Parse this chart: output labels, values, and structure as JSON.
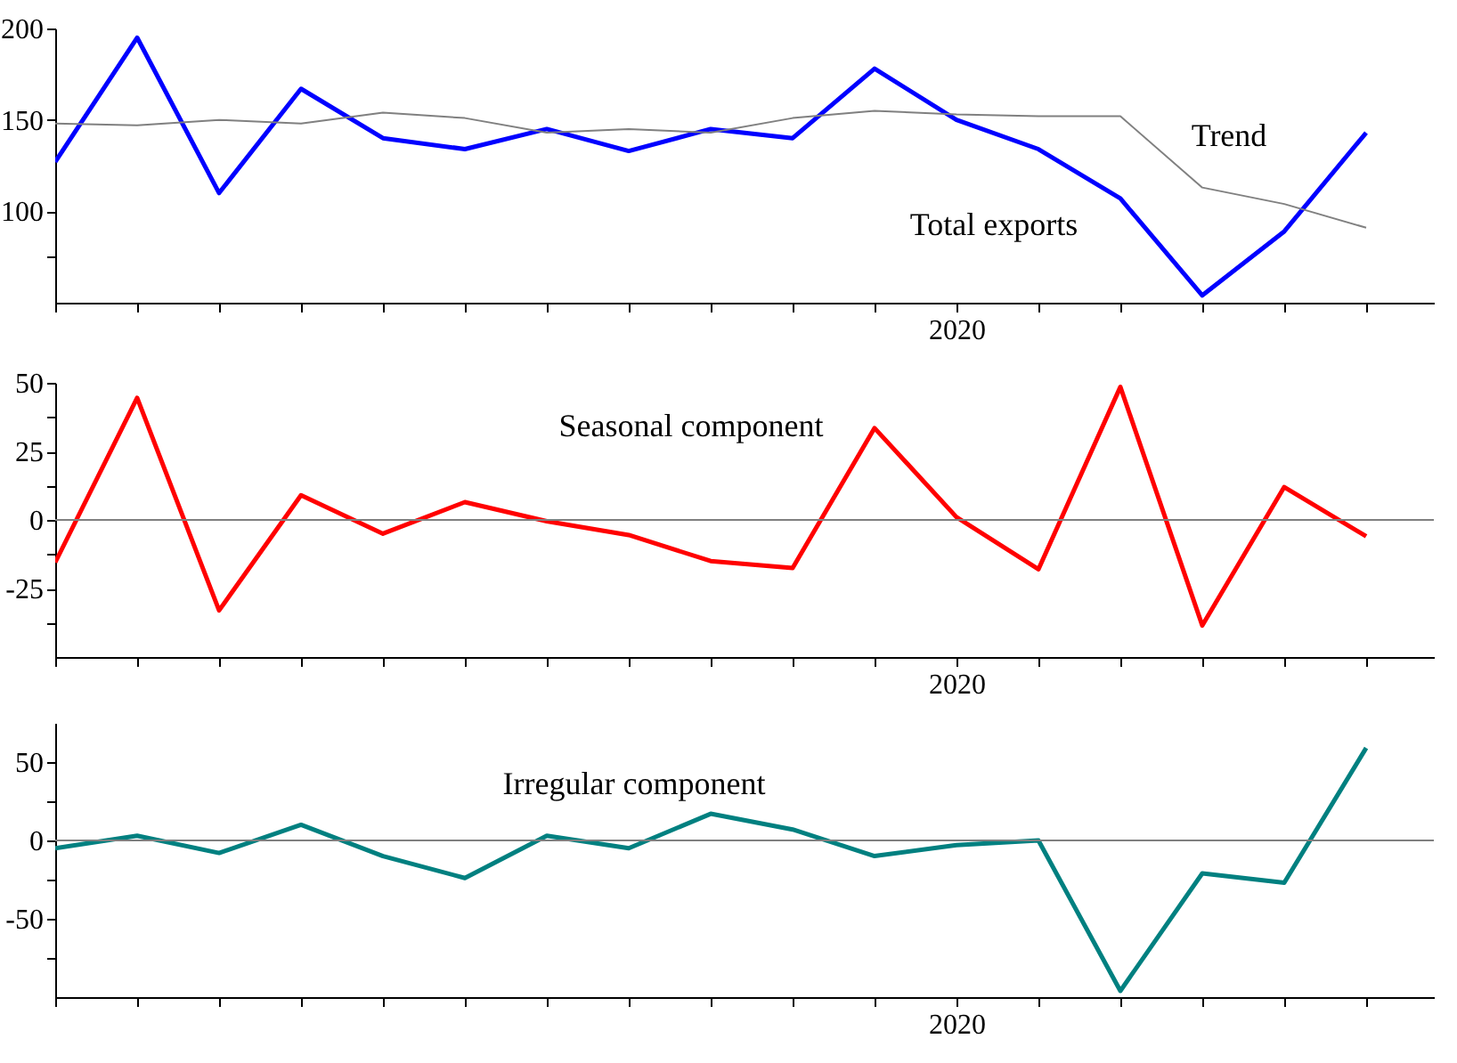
{
  "chart_data": [
    {
      "type": "line",
      "categories": [
        null,
        null,
        null,
        null,
        null,
        null,
        null,
        null,
        null,
        null,
        null,
        "2020",
        null,
        null,
        null,
        null,
        null
      ],
      "ylim": [
        50,
        200
      ],
      "yticks": [
        {
          "value": 75,
          "label": null
        },
        100,
        150,
        200
      ],
      "series": [
        {
          "name": "Total exports",
          "color": "#0000ff",
          "values": [
            127,
            195,
            110,
            167,
            140,
            134,
            145,
            133,
            145,
            140,
            178,
            150,
            134,
            107,
            54,
            89,
            143
          ]
        },
        {
          "name": "Trend",
          "color": "#808080",
          "values": [
            148,
            147,
            150,
            148,
            154,
            151,
            143,
            145,
            143,
            151,
            155,
            153,
            152,
            152,
            113,
            104,
            91
          ]
        }
      ],
      "grid": false,
      "marker": "none",
      "line_style": "solid"
    },
    {
      "type": "line",
      "categories": [
        null,
        null,
        null,
        null,
        null,
        null,
        null,
        null,
        null,
        null,
        null,
        "2020",
        null,
        null,
        null,
        null,
        null
      ],
      "ylim": [
        -50,
        50
      ],
      "yticks": [
        {
          "value": -37.5,
          "label": null
        },
        -25,
        {
          "value": -12.5,
          "label": null
        },
        0,
        {
          "value": 12.5,
          "label": null
        },
        25,
        {
          "value": 37.5,
          "label": null
        },
        50
      ],
      "series": [
        {
          "name": "Seasonal component",
          "color": "#ff0000",
          "values": [
            -15.5,
            44.5,
            -33,
            9,
            -5,
            6.5,
            -0.5,
            -5.5,
            -15,
            -17.5,
            33.5,
            1,
            -18,
            48.5,
            -38.5,
            12,
            -6
          ]
        }
      ],
      "ref_lines": [
        {
          "axis": "y",
          "value": 0,
          "color": "#808080"
        }
      ],
      "grid": false,
      "marker": "none",
      "line_style": "solid"
    },
    {
      "type": "line",
      "categories": [
        null,
        null,
        null,
        null,
        null,
        null,
        null,
        null,
        null,
        null,
        null,
        "2020",
        null,
        null,
        null,
        null,
        null
      ],
      "ylim": [
        -100,
        75
      ],
      "yticks": [
        {
          "value": -75,
          "label": null
        },
        -50,
        {
          "value": -25,
          "label": null
        },
        0,
        {
          "value": 25,
          "label": null
        },
        50
      ],
      "series": [
        {
          "name": "Irregular component",
          "color": "#008080",
          "values": [
            -5,
            3,
            -8,
            10,
            -10,
            -24,
            3,
            -5,
            17,
            7,
            -10,
            -3,
            0,
            -96,
            -21,
            -27,
            59
          ]
        }
      ],
      "ref_lines": [
        {
          "axis": "y",
          "value": 0,
          "color": "#808080"
        }
      ],
      "grid": false,
      "marker": "none",
      "line_style": "solid"
    }
  ]
}
